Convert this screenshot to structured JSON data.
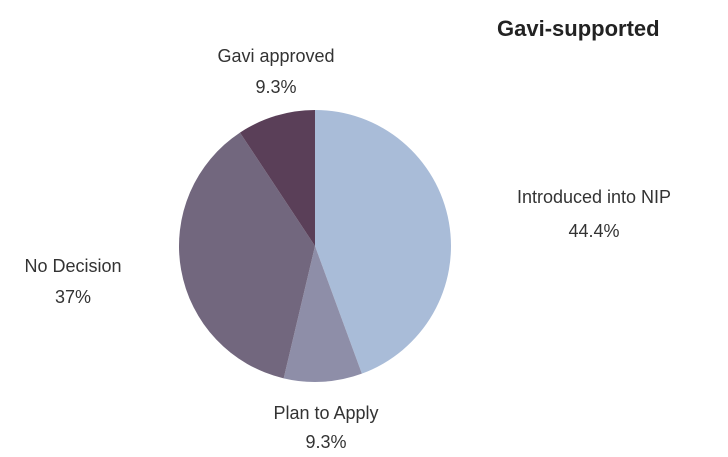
{
  "chart_data": {
    "type": "pie",
    "title": "Gavi-supported",
    "categories": [
      "Introduced into NIP",
      "Plan to Apply",
      "No Decision",
      "Gavi approved"
    ],
    "values": [
      44.4,
      9.3,
      37,
      9.3
    ],
    "value_labels": [
      "44.4%",
      "9.3%",
      "37%",
      "9.3%"
    ],
    "colors": [
      "#a9bcd8",
      "#8e8ea8",
      "#72677e",
      "#5a3f58"
    ]
  }
}
